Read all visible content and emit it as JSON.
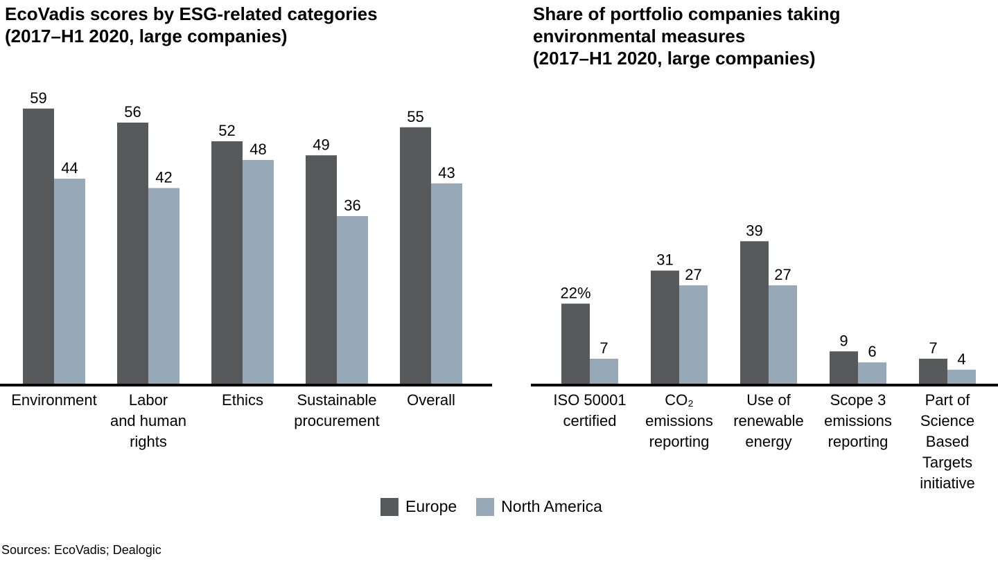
{
  "colors": {
    "europe": "#58595b",
    "north_america": "#97a9b7",
    "axis": "#000000"
  },
  "legend": [
    {
      "label": "Europe",
      "color": "#58595b"
    },
    {
      "label": "North America",
      "color": "#97a9b7"
    }
  ],
  "source": "Sources: EcoVadis; Dealogic",
  "chart_data": [
    {
      "type": "bar",
      "title": "EcoVadis scores by ESG-related categories\n(2017–H1 2020, large companies)",
      "categories": [
        "Environment",
        "Labor\nand human\nrights",
        "Ethics",
        "Sustainable\nprocurement",
        "Overall"
      ],
      "series": [
        {
          "name": "Europe",
          "values": [
            59,
            56,
            52,
            49,
            55
          ],
          "labels": [
            "59",
            "56",
            "52",
            "49",
            "55"
          ]
        },
        {
          "name": "North America",
          "values": [
            44,
            42,
            48,
            36,
            43
          ],
          "labels": [
            "44",
            "42",
            "48",
            "36",
            "43"
          ]
        }
      ],
      "ylim": [
        0,
        60
      ]
    },
    {
      "type": "bar",
      "title": "Share of portfolio companies taking\nenvironmental measures\n(2017–H1 2020, large companies)",
      "categories": [
        "ISO 50001\ncertified",
        "CO₂\nemissions\nreporting",
        "Use of\nrenewable\nenergy",
        "Scope 3\nemissions\nreporting",
        "Part of\nScience\nBased\nTargets\ninitiative"
      ],
      "series": [
        {
          "name": "Europe",
          "values": [
            22,
            31,
            39,
            9,
            7
          ],
          "labels": [
            "22%",
            "31",
            "39",
            "9",
            "7"
          ]
        },
        {
          "name": "North America",
          "values": [
            7,
            27,
            27,
            6,
            4
          ],
          "labels": [
            "7",
            "27",
            "27",
            "6",
            "4"
          ]
        }
      ],
      "ylim": [
        0,
        60
      ]
    }
  ]
}
